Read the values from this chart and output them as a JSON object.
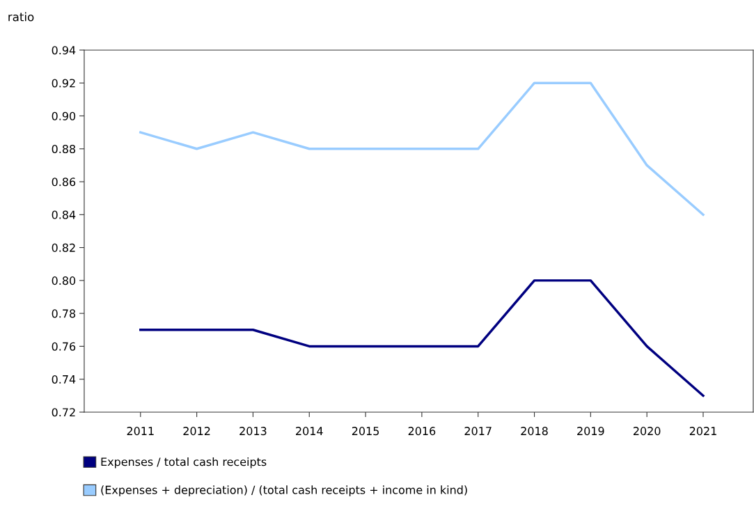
{
  "chart_data": {
    "type": "line",
    "ylabel": "ratio",
    "categories": [
      "2011",
      "2012",
      "2013",
      "2014",
      "2015",
      "2016",
      "2017",
      "2018",
      "2019",
      "2020",
      "2021"
    ],
    "series": [
      {
        "name": "Expenses / total cash receipts",
        "color": "#000080",
        "values": [
          0.77,
          0.77,
          0.77,
          0.76,
          0.76,
          0.76,
          0.76,
          0.8,
          0.8,
          0.76,
          0.73
        ]
      },
      {
        "name": "(Expenses + depreciation) / (total cash receipts + income in kind)",
        "color": "#99ccff",
        "values": [
          0.89,
          0.88,
          0.89,
          0.88,
          0.88,
          0.88,
          0.88,
          0.92,
          0.92,
          0.87,
          0.84
        ]
      }
    ],
    "ylim": [
      0.72,
      0.94
    ],
    "yticks": [
      0.72,
      0.74,
      0.76,
      0.78,
      {
        "value": 0.8,
        "label": "0.80"
      },
      0.82,
      0.84,
      0.86,
      0.88,
      {
        "value": 0.9,
        "label": "0.90"
      },
      0.92,
      0.94
    ],
    "grid": false,
    "legend": "bottom",
    "marker": "none",
    "line_style": "solid"
  }
}
